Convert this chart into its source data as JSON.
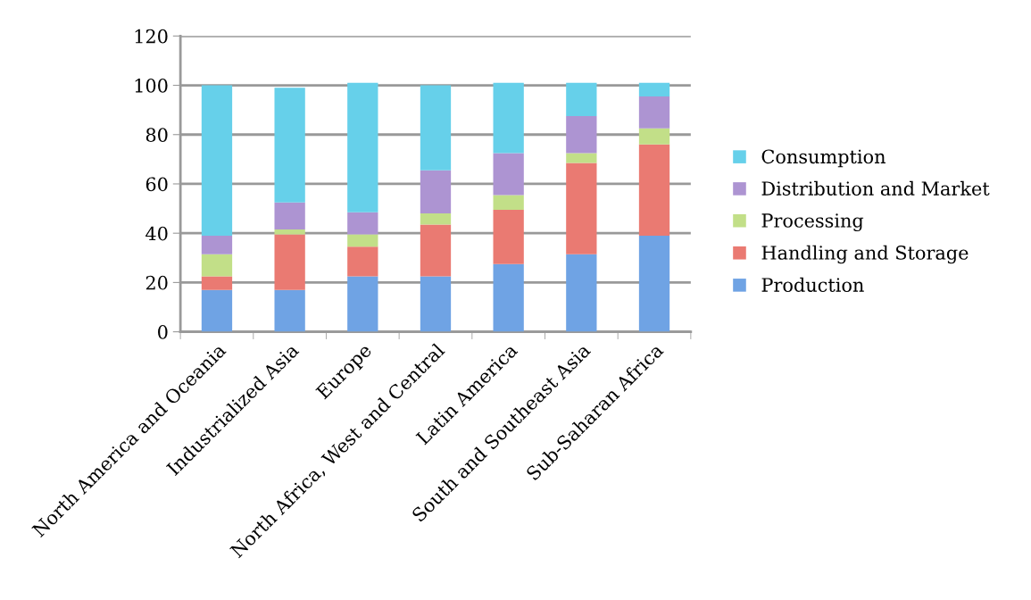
{
  "chart_data": {
    "type": "bar",
    "stacked": true,
    "categories": [
      "North America and Oceania",
      "Industrialized Asia",
      "Europe",
      "North Africa, West and Central",
      "Latin America",
      "South and Southeast Asia",
      "Sub-Saharan Africa"
    ],
    "series": [
      {
        "name": "Production",
        "color": "#6fa3e4",
        "values": [
          17,
          17,
          22.5,
          22.5,
          27.5,
          31.5,
          39
        ]
      },
      {
        "name": "Handling and Storage",
        "color": "#ea7a72",
        "values": [
          5.5,
          22.5,
          12,
          21,
          22,
          37,
          37
        ]
      },
      {
        "name": "Processing",
        "color": "#c2df88",
        "values": [
          9,
          2,
          5,
          4.5,
          6,
          4,
          6.5
        ]
      },
      {
        "name": "Distribution and Market",
        "color": "#ad94d2",
        "values": [
          7.5,
          11,
          9,
          17.5,
          17,
          15,
          13
        ]
      },
      {
        "name": "Consumption",
        "color": "#66d0ea",
        "values": [
          61,
          46.5,
          52.5,
          34.5,
          28.5,
          13.5,
          5.5
        ]
      }
    ],
    "ylim": [
      0,
      120
    ],
    "yticks": [
      0,
      20,
      40,
      60,
      80,
      100,
      120
    ],
    "grid": "y",
    "legend": "right"
  }
}
